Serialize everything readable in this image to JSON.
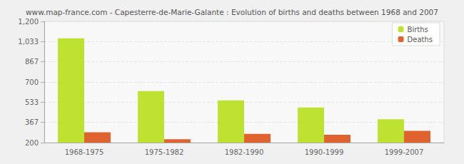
{
  "chart_data": {
    "type": "bar",
    "title": "www.map-france.com - Capesterre-de-Marie-Galante : Evolution of births and deaths between 1968 and 2007",
    "categories": [
      "1968-1975",
      "1975-1982",
      "1982-1990",
      "1990-1999",
      "1999-2007"
    ],
    "series": [
      {
        "name": "Births",
        "color": "#bde232",
        "values": [
          1060,
          625,
          548,
          490,
          393
        ]
      },
      {
        "name": "Deaths",
        "color": "#e0622f",
        "values": [
          285,
          228,
          272,
          265,
          297
        ]
      }
    ],
    "ylim": [
      200,
      1200
    ],
    "yticks": [
      200,
      367,
      533,
      700,
      867,
      1033,
      1200
    ],
    "grid": true,
    "legend": "top-right"
  }
}
